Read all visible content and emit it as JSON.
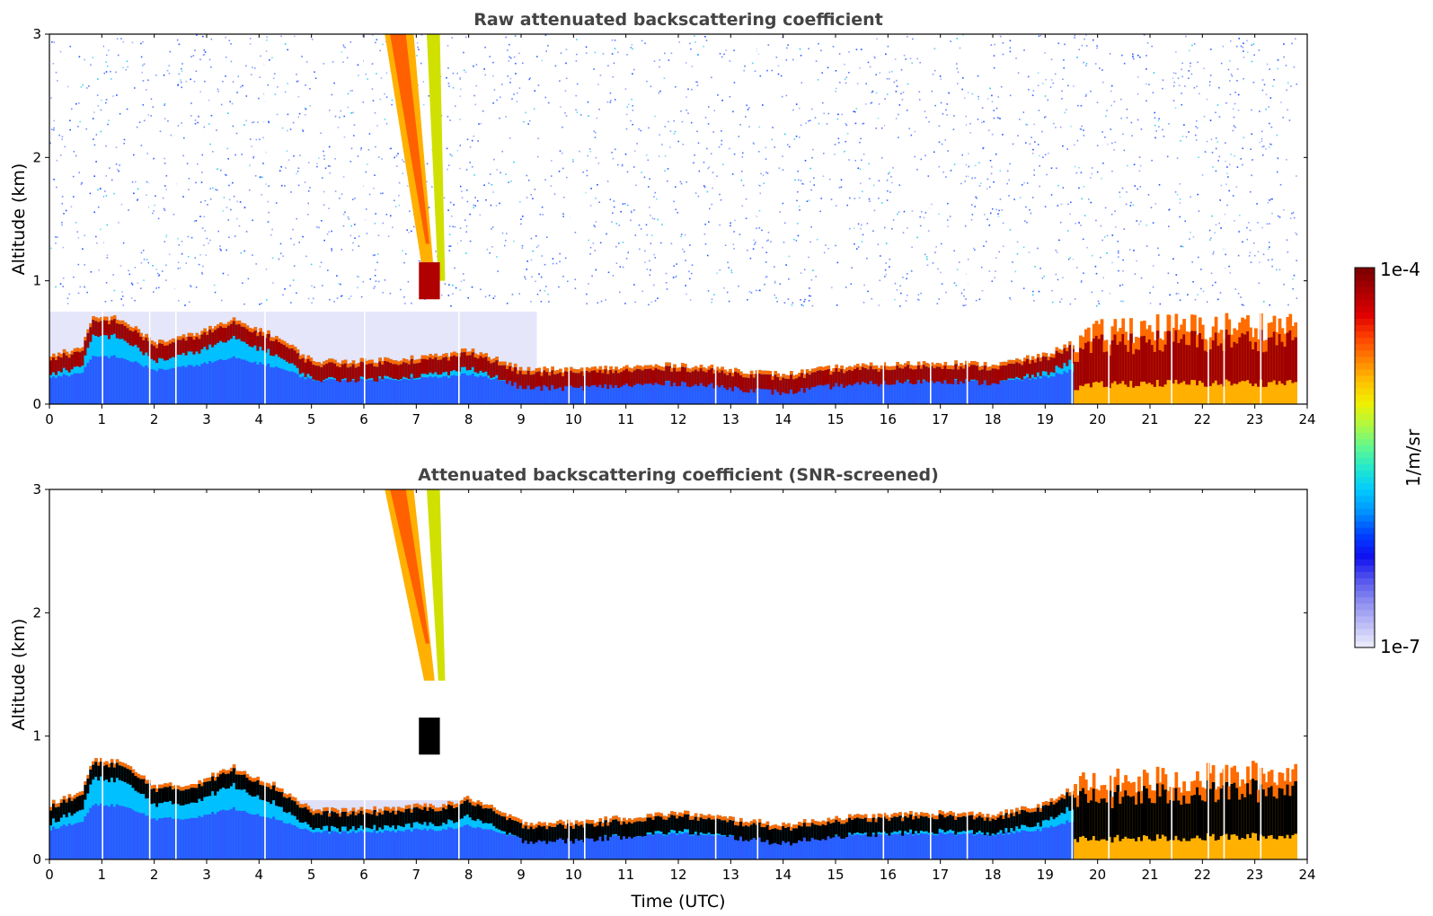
{
  "chart_data": [
    {
      "type": "heatmap",
      "id": "raw",
      "title": "Raw attenuated backscattering coefficient",
      "ylabel": "Altitude (km)",
      "xlabel": "",
      "xlim": [
        0,
        24
      ],
      "ylim": [
        0,
        3
      ],
      "x_ticks": [
        0,
        1,
        2,
        3,
        4,
        5,
        6,
        7,
        8,
        9,
        10,
        11,
        12,
        13,
        14,
        15,
        16,
        17,
        18,
        19,
        20,
        21,
        22,
        23,
        24
      ],
      "y_ticks": [
        0,
        1,
        2,
        3
      ],
      "boundary_layer_top_km": [
        {
          "t": 0.0,
          "h": 0.4
        },
        {
          "t": 0.6,
          "h": 0.45
        },
        {
          "t": 0.8,
          "h": 0.7
        },
        {
          "t": 1.3,
          "h": 0.7
        },
        {
          "t": 2.0,
          "h": 0.5
        },
        {
          "t": 2.6,
          "h": 0.55
        },
        {
          "t": 3.5,
          "h": 0.68
        },
        {
          "t": 4.3,
          "h": 0.55
        },
        {
          "t": 5.0,
          "h": 0.35
        },
        {
          "t": 6.0,
          "h": 0.35
        },
        {
          "t": 7.6,
          "h": 0.4
        },
        {
          "t": 8.0,
          "h": 0.45
        },
        {
          "t": 9.0,
          "h": 0.28
        },
        {
          "t": 10.0,
          "h": 0.28
        },
        {
          "t": 12.0,
          "h": 0.32
        },
        {
          "t": 14.0,
          "h": 0.24
        },
        {
          "t": 15.0,
          "h": 0.3
        },
        {
          "t": 17.0,
          "h": 0.34
        },
        {
          "t": 18.0,
          "h": 0.32
        },
        {
          "t": 19.0,
          "h": 0.4
        },
        {
          "t": 19.5,
          "h": 0.5
        },
        {
          "t": 20.5,
          "h": 0.62
        },
        {
          "t": 22.0,
          "h": 0.62
        },
        {
          "t": 23.8,
          "h": 0.65
        }
      ],
      "ice_cloud_fall_streak": {
        "t_start": 6.4,
        "t_end": 7.5,
        "top_km": 3.0,
        "base_km": 1.0
      }
    },
    {
      "type": "heatmap",
      "id": "screened",
      "title": "Attenuated backscattering coefficient (SNR-screened)",
      "ylabel": "Altitude (km)",
      "xlabel": "Time (UTC)",
      "xlim": [
        0,
        24
      ],
      "ylim": [
        0,
        3
      ],
      "x_ticks": [
        0,
        1,
        2,
        3,
        4,
        5,
        6,
        7,
        8,
        9,
        10,
        11,
        12,
        13,
        14,
        15,
        16,
        17,
        18,
        19,
        20,
        21,
        22,
        23,
        24
      ],
      "y_ticks": [
        0,
        1,
        2,
        3
      ],
      "boundary_layer_top_km": [
        {
          "t": 0.0,
          "h": 0.45
        },
        {
          "t": 0.6,
          "h": 0.55
        },
        {
          "t": 0.8,
          "h": 0.8
        },
        {
          "t": 1.3,
          "h": 0.8
        },
        {
          "t": 2.0,
          "h": 0.6
        },
        {
          "t": 2.6,
          "h": 0.6
        },
        {
          "t": 3.5,
          "h": 0.75
        },
        {
          "t": 4.3,
          "h": 0.6
        },
        {
          "t": 5.0,
          "h": 0.4
        },
        {
          "t": 6.0,
          "h": 0.4
        },
        {
          "t": 7.6,
          "h": 0.45
        },
        {
          "t": 8.0,
          "h": 0.5
        },
        {
          "t": 9.0,
          "h": 0.3
        },
        {
          "t": 10.0,
          "h": 0.3
        },
        {
          "t": 12.0,
          "h": 0.38
        },
        {
          "t": 14.0,
          "h": 0.28
        },
        {
          "t": 15.0,
          "h": 0.34
        },
        {
          "t": 17.0,
          "h": 0.38
        },
        {
          "t": 18.0,
          "h": 0.36
        },
        {
          "t": 19.0,
          "h": 0.45
        },
        {
          "t": 19.5,
          "h": 0.58
        },
        {
          "t": 20.5,
          "h": 0.62
        },
        {
          "t": 22.0,
          "h": 0.66
        },
        {
          "t": 23.8,
          "h": 0.7
        }
      ],
      "ice_cloud_fall_streak": {
        "t_start": 6.4,
        "t_end": 7.5,
        "top_km": 3.0,
        "base_km": 1.45
      }
    }
  ],
  "colorbar": {
    "label": "1/m/sr",
    "max_label": "1e-4",
    "min_label": "1e-7",
    "colors": [
      "#e8e8fb",
      "#b9b9f5",
      "#8a8af0",
      "#5252ee",
      "#1010f0",
      "#0040ff",
      "#0090ff",
      "#00c8ff",
      "#20e8d0",
      "#60f890",
      "#b0f840",
      "#f0f000",
      "#ffc000",
      "#ff8000",
      "#ff4000",
      "#e00000",
      "#b00000",
      "#800000"
    ]
  },
  "colors": {
    "bl_core": "#a00000",
    "bl_mid": "#ff6a00",
    "bl_low": "#00c0ff",
    "noise": "#1030ff",
    "screened_core": "#000000"
  }
}
